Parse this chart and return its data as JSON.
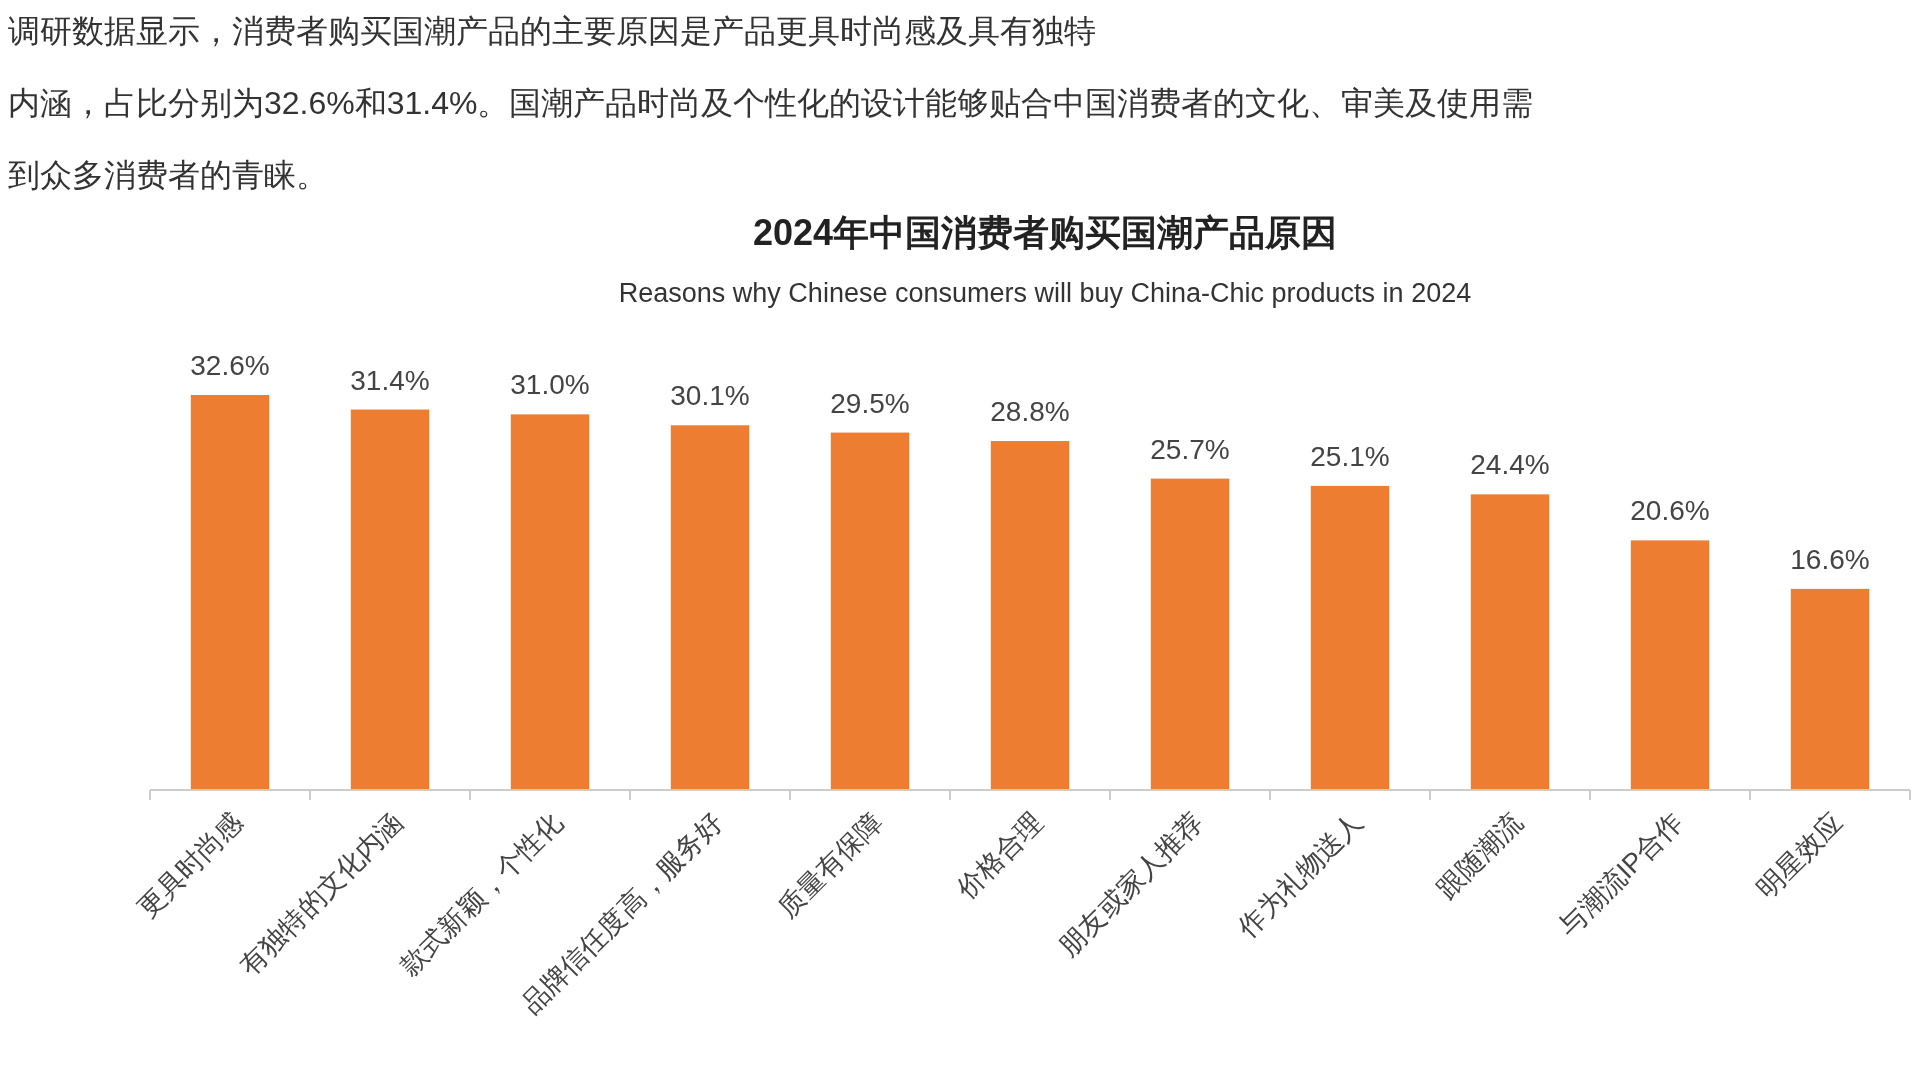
{
  "chart_data": {
    "type": "bar",
    "title": "2024年中国消费者购买国潮产品原因",
    "subtitle": "Reasons why Chinese consumers will buy China-Chic products in 2024",
    "annotations": [
      "调研数据显示，消费者购买国潮产品的主要原因是产品更具时尚感及具有独特",
      "内涵，占比分别为32.6%和31.4%。国潮产品时尚及个性化的设计能够贴合中国消费者的文化、审美及使用需",
      "到众多消费者的青睐。"
    ],
    "categories": [
      "更具时尚感",
      "有独特的文化内涵",
      "款式新颖，个性化",
      "品牌信任度高，服务好",
      "质量有保障",
      "价格合理",
      "朋友或家人推荐",
      "作为礼物送人",
      "跟随潮流",
      "与潮流IP合作",
      "明星效应"
    ],
    "values": [
      32.6,
      31.4,
      31.0,
      30.1,
      29.5,
      28.8,
      25.7,
      25.1,
      24.4,
      20.6,
      16.6
    ],
    "value_labels": [
      "32.6%",
      "31.4%",
      "31.0%",
      "30.1%",
      "29.5%",
      "28.8%",
      "25.7%",
      "25.1%",
      "24.4%",
      "20.6%",
      "16.6%"
    ],
    "color": "#ed7d31"
  }
}
